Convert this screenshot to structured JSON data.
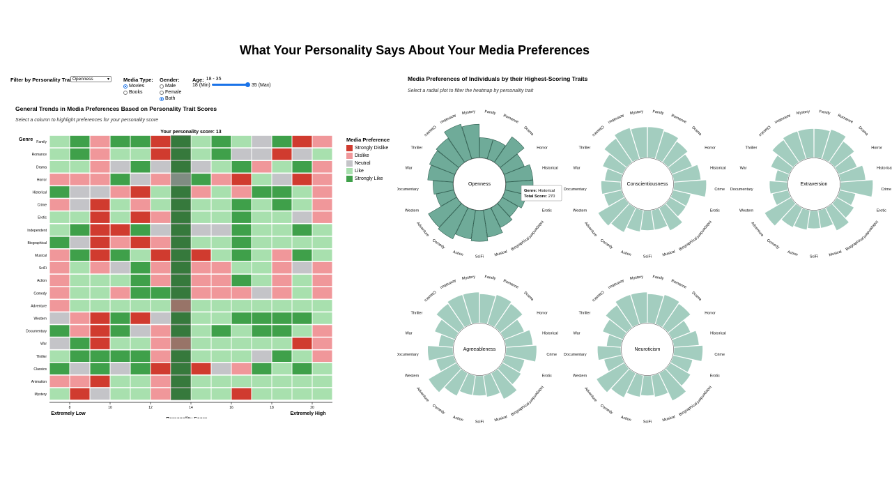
{
  "title": "What Your Personality Says About Your Media Preferences",
  "controls": {
    "trait_label": "Filter by Personality Trait:",
    "trait_value": "Openness",
    "media_label": "Media Type:",
    "media_options": [
      "Movies",
      "Books"
    ],
    "media_selected": "Movies",
    "gender_label": "Gender:",
    "gender_options": [
      "Male",
      "Female",
      "Both"
    ],
    "gender_selected": "Both",
    "age_label": "Age:",
    "age_range": "18 - 35",
    "age_min": "18 (Min)",
    "age_max": "35 (Max)"
  },
  "heatmap": {
    "title": "General Trends in Media Preferences Based on Personality Trait Scores",
    "instruction": "Select a column to highlight preferences for your personality score",
    "score_label": "Your personality score: 13",
    "genre_header": "Genre",
    "x_title": "Personality Score",
    "low_label": "Extremely Low",
    "high_label": "Extremely High",
    "x_ticks": [
      "8",
      "10",
      "12",
      "14",
      "16",
      "18",
      "20"
    ],
    "highlight_col": 6,
    "legend_title": "Media Preference",
    "legend": [
      {
        "label": "Strongly Dislike",
        "color": "#d03b2f"
      },
      {
        "label": "Dislike",
        "color": "#f0979a"
      },
      {
        "label": "Neutral",
        "color": "#c4c4c8"
      },
      {
        "label": "Like",
        "color": "#a8e0ae"
      },
      {
        "label": "Strongly Like",
        "color": "#3fa04a"
      }
    ],
    "genres": [
      "Family",
      "Romance",
      "Drama",
      "Horror",
      "Historical",
      "Crime",
      "Erotic",
      "Independent",
      "Biographical",
      "Musical",
      "SciFi",
      "Action",
      "Comedy",
      "Adventure",
      "Western",
      "Documentary",
      "War",
      "Thriller",
      "Classics",
      "Animation",
      "Mystery"
    ],
    "matrix": [
      [
        3,
        4,
        1,
        4,
        4,
        0,
        4,
        3,
        4,
        3,
        2,
        4,
        0,
        1
      ],
      [
        3,
        4,
        1,
        3,
        3,
        0,
        4,
        3,
        4,
        2,
        2,
        0,
        2,
        3
      ],
      [
        3,
        3,
        1,
        2,
        4,
        2,
        4,
        2,
        3,
        4,
        1,
        3,
        4,
        1
      ],
      [
        1,
        1,
        1,
        4,
        2,
        1,
        2,
        4,
        1,
        0,
        3,
        2,
        0,
        1
      ],
      [
        4,
        2,
        2,
        1,
        0,
        3,
        4,
        1,
        3,
        1,
        4,
        4,
        3,
        1
      ],
      [
        1,
        2,
        0,
        3,
        1,
        3,
        4,
        3,
        3,
        4,
        3,
        4,
        3,
        1
      ],
      [
        3,
        3,
        0,
        3,
        0,
        1,
        4,
        3,
        3,
        4,
        3,
        3,
        2,
        1
      ],
      [
        3,
        4,
        0,
        0,
        4,
        2,
        4,
        2,
        2,
        4,
        3,
        3,
        4,
        3
      ],
      [
        4,
        2,
        0,
        1,
        0,
        1,
        4,
        3,
        3,
        4,
        3,
        3,
        3,
        3
      ],
      [
        1,
        4,
        0,
        4,
        3,
        0,
        4,
        0,
        3,
        4,
        3,
        1,
        4,
        3
      ],
      [
        1,
        3,
        1,
        2,
        4,
        1,
        4,
        1,
        1,
        3,
        3,
        1,
        2,
        1
      ],
      [
        1,
        3,
        3,
        3,
        4,
        1,
        4,
        1,
        1,
        4,
        3,
        1,
        3,
        1
      ],
      [
        1,
        3,
        3,
        1,
        4,
        4,
        4,
        1,
        1,
        1,
        2,
        1,
        3,
        1
      ],
      [
        1,
        3,
        3,
        3,
        3,
        3,
        1,
        3,
        3,
        3,
        3,
        3,
        3,
        3
      ],
      [
        2,
        1,
        0,
        4,
        0,
        2,
        4,
        3,
        3,
        4,
        4,
        4,
        4,
        3
      ],
      [
        4,
        1,
        0,
        4,
        2,
        1,
        4,
        3,
        4,
        3,
        4,
        4,
        3,
        1
      ],
      [
        2,
        4,
        0,
        3,
        3,
        1,
        1,
        3,
        3,
        3,
        3,
        3,
        0,
        1
      ],
      [
        3,
        4,
        4,
        4,
        4,
        1,
        4,
        3,
        3,
        3,
        2,
        4,
        3,
        1
      ],
      [
        4,
        2,
        4,
        2,
        4,
        0,
        4,
        0,
        2,
        1,
        4,
        3,
        4,
        3
      ],
      [
        1,
        1,
        0,
        3,
        3,
        1,
        4,
        3,
        3,
        3,
        3,
        3,
        3,
        3
      ],
      [
        3,
        0,
        2,
        3,
        3,
        1,
        4,
        3,
        3,
        0,
        3,
        3,
        3,
        3
      ]
    ]
  },
  "radial": {
    "title": "Media Preferences of Individuals by their Highest-Scoring Traits",
    "instruction": "Select a radial plot to filter the heatmap by personality trait",
    "genres": [
      "Family",
      "Romance",
      "Drama",
      "Horror",
      "Historical",
      "Crime",
      "Erotic",
      "Independent",
      "Biographical",
      "Musical",
      "SciFi",
      "Action",
      "Comedy",
      "Adventure",
      "Western",
      "Documentary",
      "War",
      "Thriller",
      "Classics",
      "Animation",
      "Mystery"
    ],
    "tooltip": {
      "genre_label": "Genre:",
      "genre_value": "Historical",
      "score_label": "Total Score:",
      "score_value": "270"
    },
    "plots": [
      {
        "name": "Openness",
        "selected": true,
        "values": [
          0.55,
          0.55,
          0.85,
          0.6,
          0.75,
          0.75,
          0.6,
          0.5,
          0.6,
          0.75,
          0.85,
          0.8,
          0.95,
          0.9,
          0.5,
          0.55,
          0.7,
          0.75,
          0.8,
          1.0,
          0.92
        ]
      },
      {
        "name": "Conscientiousness",
        "selected": false,
        "values": [
          0.85,
          0.8,
          0.7,
          0.6,
          0.75,
          0.9,
          0.5,
          0.5,
          0.7,
          0.55,
          0.55,
          0.6,
          0.75,
          0.85,
          0.5,
          0.55,
          0.45,
          0.6,
          0.8,
          0.9,
          0.85
        ]
      },
      {
        "name": "Extraversion",
        "selected": false,
        "values": [
          0.8,
          0.85,
          0.7,
          0.55,
          0.7,
          0.9,
          0.45,
          0.55,
          0.7,
          0.5,
          0.5,
          0.55,
          0.6,
          0.85,
          0.45,
          0.5,
          0.35,
          0.55,
          0.75,
          0.8,
          0.8
        ]
      },
      {
        "name": "Agreeableness",
        "selected": false,
        "values": [
          0.8,
          0.85,
          0.8,
          0.6,
          0.75,
          0.85,
          0.55,
          0.6,
          0.8,
          0.6,
          0.55,
          0.55,
          0.7,
          0.9,
          0.5,
          0.7,
          0.4,
          0.6,
          0.8,
          0.85,
          0.85
        ]
      },
      {
        "name": "Neuroticism",
        "selected": false,
        "values": [
          0.8,
          0.85,
          0.8,
          0.55,
          0.7,
          0.8,
          0.55,
          0.65,
          0.85,
          0.6,
          0.55,
          0.6,
          0.75,
          0.9,
          0.5,
          0.65,
          0.4,
          0.6,
          0.75,
          0.85,
          0.85
        ]
      }
    ],
    "colors": {
      "selected": "#6fab99",
      "normal": "#a3cdbf",
      "stroke_sel": "#2f5e50",
      "stroke": "#ffffff"
    }
  }
}
